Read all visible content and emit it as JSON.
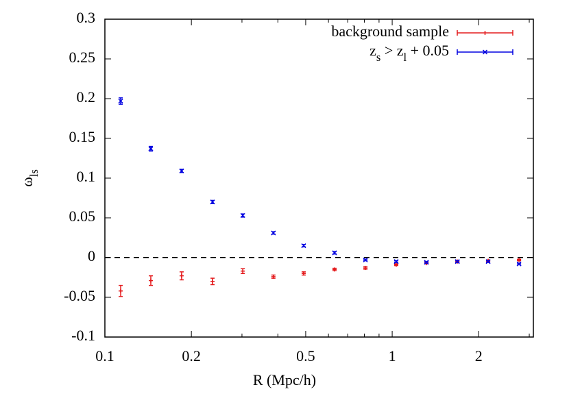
{
  "chart_data": {
    "type": "scatter",
    "x_label": "R (Mpc/h)",
    "y_label": "ω_{ls}",
    "xlog": true,
    "xlim": [
      0.1,
      3.1
    ],
    "ylim": [
      -0.1,
      0.3
    ],
    "xticks": [
      0.1,
      0.2,
      0.5,
      1,
      2
    ],
    "xminorticks": [
      0.3,
      0.4,
      0.6,
      0.7,
      0.8,
      0.9,
      3
    ],
    "yticks": [
      -0.1,
      -0.05,
      0,
      0.05,
      0.1,
      0.15,
      0.2,
      0.25,
      0.3
    ],
    "reference_line": 0,
    "legend": "top-right",
    "x": [
      0.1135,
      0.1445,
      0.185,
      0.237,
      0.302,
      0.386,
      0.492,
      0.63,
      0.807,
      1.033,
      1.316,
      1.686,
      2.158,
      2.764
    ],
    "series": [
      {
        "name": "background sample",
        "color": "#e41a1c",
        "marker": "plus",
        "values": [
          -0.042,
          -0.029,
          -0.023,
          -0.03,
          -0.017,
          -0.024,
          -0.02,
          -0.015,
          -0.013,
          -0.009,
          -0.007,
          -0.005,
          -0.004,
          -0.003
        ],
        "errors": [
          0.007,
          0.006,
          0.005,
          0.004,
          0.003,
          0.002,
          0.002,
          0.0015,
          0.0015,
          0.001,
          0.001,
          0.001,
          0.001,
          0.001
        ]
      },
      {
        "name": "z_s > z_l + 0.05",
        "color": "#0000e0",
        "marker": "cross",
        "values": [
          0.197,
          0.137,
          0.109,
          0.07,
          0.053,
          0.031,
          0.015,
          0.006,
          -0.003,
          -0.005,
          -0.006,
          -0.005,
          -0.005,
          -0.008
        ],
        "errors": [
          0.004,
          0.003,
          0.002,
          0.002,
          0.002,
          0.0015,
          0.0015,
          0.0015,
          0.001,
          0.001,
          0.001,
          0.001,
          0.001,
          0.001
        ]
      }
    ]
  }
}
